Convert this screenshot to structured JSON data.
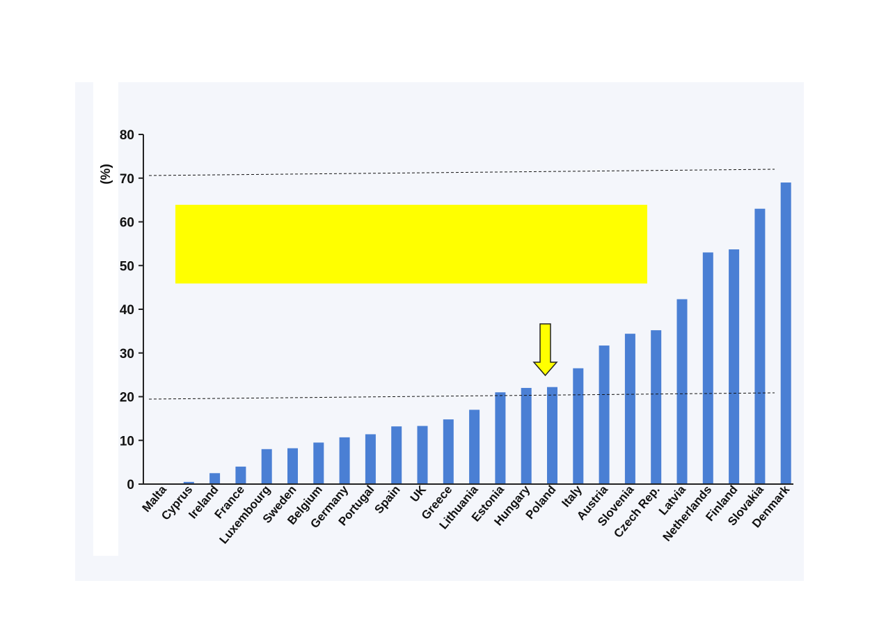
{
  "chart_data": {
    "type": "bar",
    "ylabel": "(%)",
    "ylim": [
      0,
      80
    ],
    "yticks": [
      "0",
      "10",
      "20",
      "30",
      "40",
      "50",
      "60",
      "70",
      "80"
    ],
    "grid": false,
    "categories": [
      "Malta",
      "Cyprus",
      "Ireland",
      "France",
      "Luxembourg",
      "Sweden",
      "Belgium",
      "Germany",
      "Portugal",
      "Spain",
      "UK",
      "Greece",
      "Lithuania",
      "Estonia",
      "Hungary",
      "Poland",
      "Italy",
      "Austria",
      "Slovenia",
      "Czech Rep.",
      "Latvia",
      "Netherlands",
      "Finland",
      "Slovakia",
      "Denmark"
    ],
    "values": [
      0,
      0.5,
      2.5,
      4,
      8,
      8.2,
      9.5,
      10.7,
      11.4,
      13.2,
      13.3,
      14.8,
      17,
      21,
      22,
      22.2,
      26.5,
      31.7,
      34.4,
      35.2,
      42.3,
      53,
      53.7,
      63,
      69
    ],
    "reference_lines": [
      70.8,
      20.3
    ],
    "highlight_category": "Poland",
    "colors": {
      "bar": "#4a7fd4",
      "axis": "#222222",
      "reference_line": "#111111",
      "highlight_box": "#ffff00",
      "arrow_fill": "#ffff00",
      "arrow_stroke": "#222222",
      "panel_background": "#f4f6fb"
    }
  }
}
